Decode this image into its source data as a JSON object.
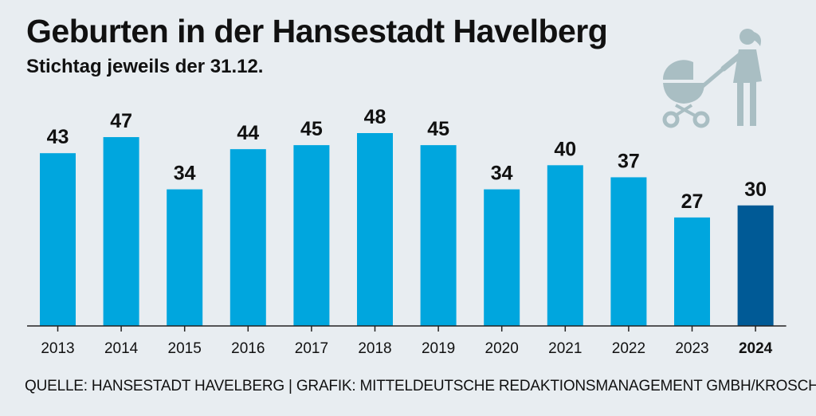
{
  "header": {
    "title": "Geburten in der Hansestadt Havelberg",
    "subtitle": "Stichtag jeweils der 31.12."
  },
  "footer": {
    "source": "QUELLE: HANSESTADT HAVELBERG | GRAFIK: MITTELDEUTSCHE REDAKTIONSMANAGEMENT GMBH/KROSCHEL"
  },
  "icons": {
    "pictogram": "person-with-stroller-icon"
  },
  "colors": {
    "bar": "#00a6de",
    "bar_highlight": "#005a96",
    "icon": "#a9bec3",
    "text": "#111111",
    "background": "#e8edf1"
  },
  "chart_data": {
    "type": "bar",
    "title": "Geburten in der Hansestadt Havelberg",
    "subtitle": "Stichtag jeweils der 31.12.",
    "categories": [
      "2013",
      "2014",
      "2015",
      "2016",
      "2017",
      "2018",
      "2019",
      "2020",
      "2021",
      "2022",
      "2023",
      "2024"
    ],
    "values": [
      43,
      47,
      34,
      44,
      45,
      48,
      45,
      34,
      40,
      37,
      27,
      30
    ],
    "highlight_category": "2024",
    "xlabel": "",
    "ylabel": "",
    "ylim": [
      0,
      48
    ],
    "grid": false,
    "legend": "none"
  }
}
